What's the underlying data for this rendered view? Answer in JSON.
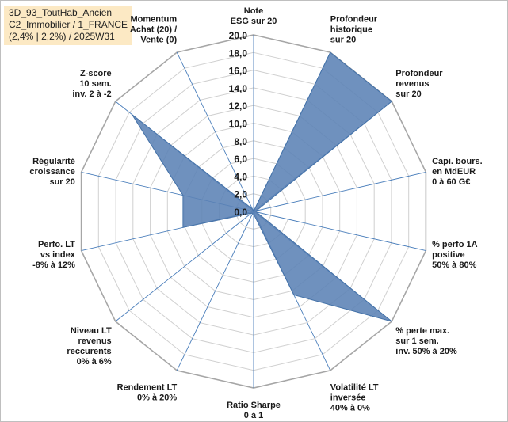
{
  "title_box": {
    "line1": "3D_93_ToutHab_Ancien",
    "line2": "C2_Immobilier / 1_FRANCE",
    "line3": "(2,4% | 2,2%) / 2025W31"
  },
  "colors": {
    "fill": "#5b82b5",
    "stroke": "#4472a8",
    "grid": "#d0d0d0",
    "spoke": "#4a7ebb"
  },
  "chart_data": {
    "type": "radar",
    "r_max": 20,
    "tick_labels": [
      "0,0",
      "2,0",
      "4,0",
      "6,0",
      "8,0",
      "10,0",
      "12,0",
      "14,0",
      "16,0",
      "18,0",
      "20,0"
    ],
    "axes": [
      {
        "label": [
          "Note",
          "ESG sur 20"
        ],
        "value": 0
      },
      {
        "label": [
          "Profondeur",
          "historique",
          "sur 20"
        ],
        "value": 20
      },
      {
        "label": [
          "Profondeur",
          "revenus",
          "sur 20"
        ],
        "value": 20
      },
      {
        "label": [
          "Capi. bours.",
          "en MdEUR",
          "0 à 60 G€"
        ],
        "value": 0.3
      },
      {
        "label": [
          "% perfo 1A",
          "positive",
          "50% à 80%"
        ],
        "value": 0.3
      },
      {
        "label": [
          "% perte max.",
          "sur 1 sem.",
          "inv. 50% à 20%"
        ],
        "value": 20
      },
      {
        "label": [
          "Volatilité LT",
          "inversée",
          "40% à 0%"
        ],
        "value": 10.5
      },
      {
        "label": [
          "Ratio Sharpe",
          "0 à 1"
        ],
        "value": 0.3
      },
      {
        "label": [
          "Rendement LT",
          "0% à 20%"
        ],
        "value": 0.3
      },
      {
        "label": [
          "Niveau LT",
          "revenus",
          "reccurents",
          "0% à 6%"
        ],
        "value": 0.3
      },
      {
        "label": [
          "Perfo. LT",
          "vs index",
          "-8% à 12%"
        ],
        "value": 8.2
      },
      {
        "label": [
          "Régularité",
          "croissance",
          "sur 20"
        ],
        "value": 8.2
      },
      {
        "label": [
          "Z-score",
          "10 sem.",
          "inv. 2 à -2"
        ],
        "value": 17.6
      },
      {
        "label": [
          "Momentum",
          "Achat (20) /",
          "Vente (0)"
        ],
        "value": 0.3
      }
    ]
  }
}
